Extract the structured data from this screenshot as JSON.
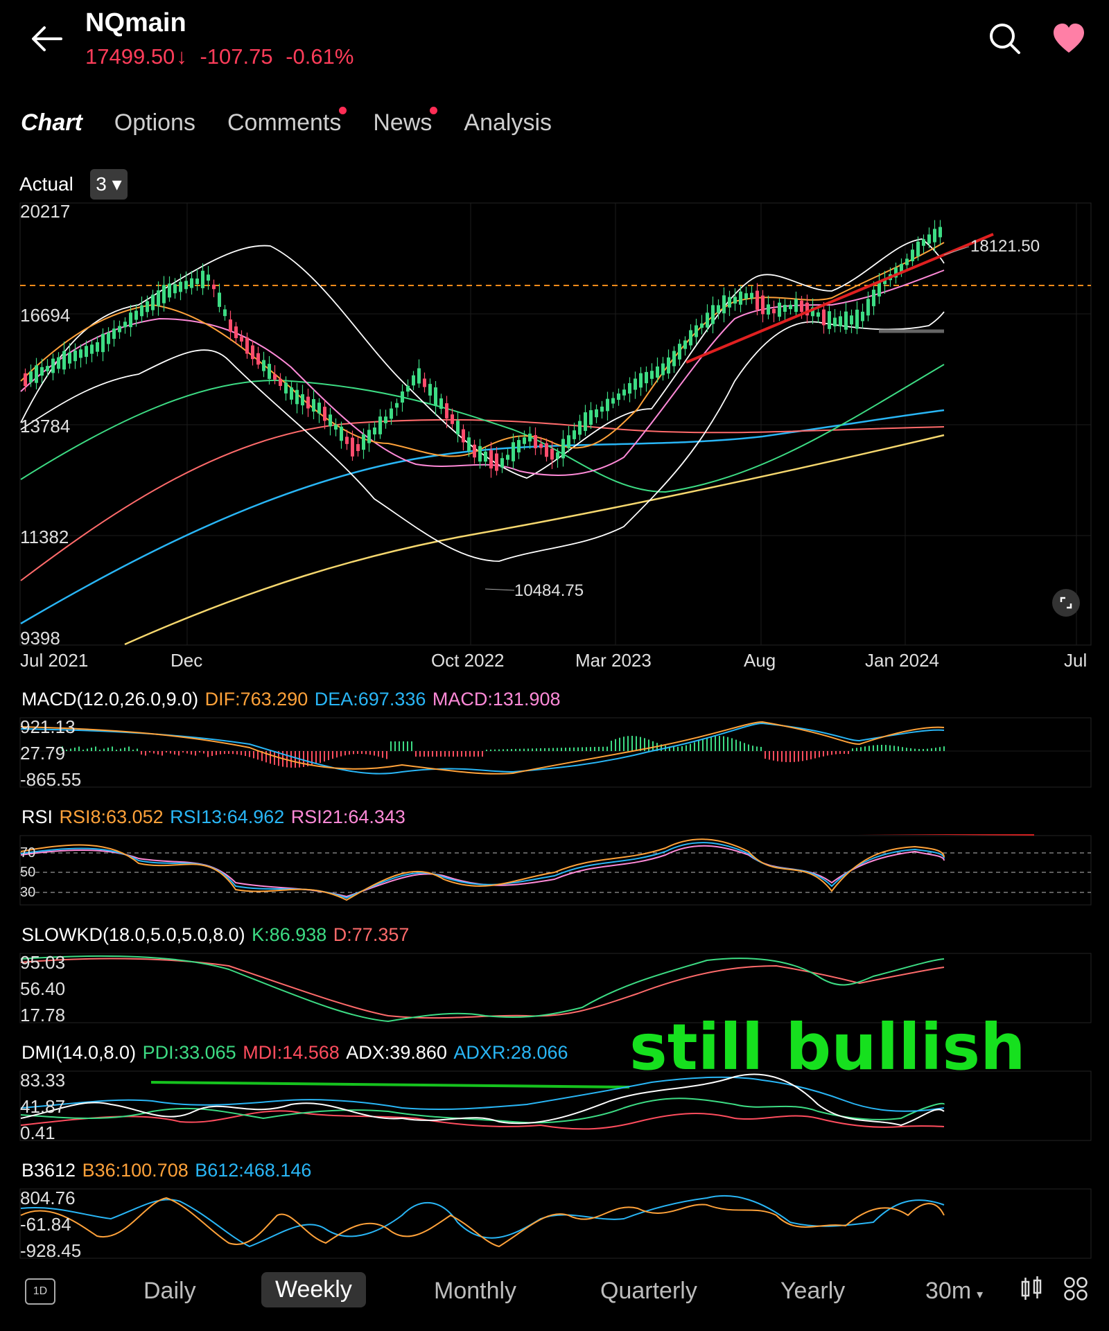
{
  "header": {
    "title": "NQmain",
    "price": "17499.50",
    "change": "-107.75",
    "change_pct": "-0.61%",
    "price_color": "#ff3d5a"
  },
  "tabs": [
    {
      "label": "Chart",
      "active": true,
      "dot": false
    },
    {
      "label": "Options",
      "active": false,
      "dot": false
    },
    {
      "label": "Comments",
      "active": false,
      "dot": true
    },
    {
      "label": "News",
      "active": false,
      "dot": true
    },
    {
      "label": "Analysis",
      "active": false,
      "dot": false
    }
  ],
  "chart_header": {
    "actual_label": "Actual",
    "adjust_value": "3"
  },
  "main_chart": {
    "y_ticks": [
      "20217",
      "16694",
      "13784",
      "11382",
      "9398"
    ],
    "x_ticks": [
      "Jul 2021",
      "Dec",
      "Oct 2022",
      "Mar 2023",
      "Aug",
      "Jan 2024",
      "Jul"
    ],
    "high_label": "18121.50",
    "low_label": "10484.75",
    "last_price_line_color": "#ff8c1a",
    "trendline_color": "#e02020"
  },
  "macd": {
    "title": "MACD(12.0,26.0,9.0)",
    "dif": "DIF:763.290",
    "dea": "DEA:697.336",
    "macd": "MACD:131.908",
    "y_ticks": [
      "921.13",
      "27.79",
      "-865.55"
    ]
  },
  "rsi": {
    "title": "RSI",
    "rsi8": "RSI8:63.052",
    "rsi13": "RSI13:64.962",
    "rsi21": "RSI21:64.343",
    "y_ticks": [
      "70",
      "50",
      "30"
    ]
  },
  "slowkd": {
    "title": "SLOWKD(18.0,5.0,5.0,8.0)",
    "k": "K:86.938",
    "d": "D:77.357",
    "y_ticks": [
      "95.03",
      "56.40",
      "17.78"
    ]
  },
  "dmi": {
    "title": "DMI(14.0,8.0)",
    "pdi": "PDI:33.065",
    "mdi": "MDI:14.568",
    "adx": "ADX:39.860",
    "adxr": "ADXR:28.066",
    "y_ticks": [
      "83.33",
      "41.87",
      "0.41"
    ]
  },
  "b3612": {
    "title": "B3612",
    "b36": "B36:100.708",
    "b612": "B612:468.146",
    "y_ticks": [
      "804.76",
      "-61.84",
      "-928.45"
    ]
  },
  "annotation": "still bullish",
  "bottom_bar": {
    "periods": [
      {
        "label": "Daily",
        "active": false
      },
      {
        "label": "Weekly",
        "active": true
      },
      {
        "label": "Monthly",
        "active": false
      },
      {
        "label": "Quarterly",
        "active": false
      },
      {
        "label": "Yearly",
        "active": false
      }
    ],
    "interval": "30m",
    "icons": [
      "1d-icon",
      "candlestick-icon",
      "grid-icon"
    ]
  },
  "colors": {
    "orange": "#ffa23a",
    "blue": "#29b6f6",
    "pink": "#ff8ad8",
    "green": "#3ddc84",
    "red": "#ff4d5e",
    "white": "#ffffff"
  }
}
